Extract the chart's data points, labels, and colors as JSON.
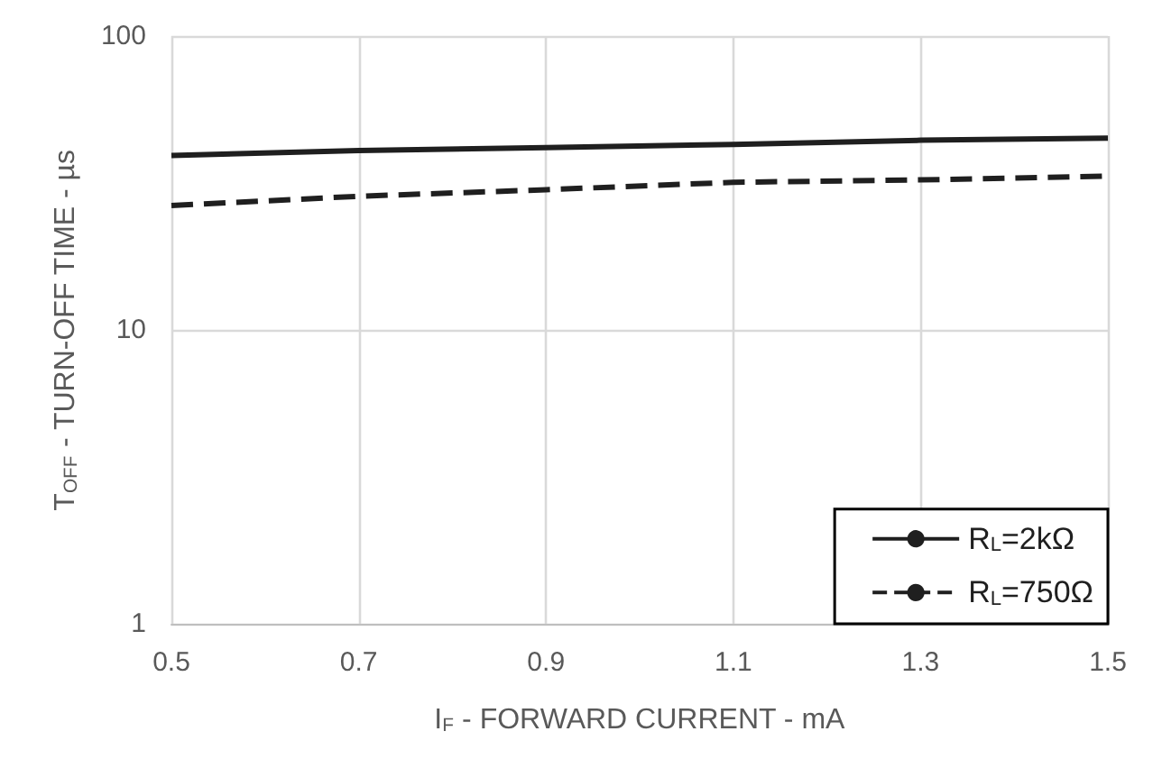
{
  "chart_data": {
    "type": "line",
    "xlabel": "I$_{F}$ - FORWARD CURRENT - mA",
    "ylabel": "T$_{OFF}$ - TURN-OFF TIME - µs",
    "x": [
      0.5,
      0.7,
      0.9,
      1.1,
      1.3,
      1.5
    ],
    "series": [
      {
        "name": "R$_{L}$=2kΩ",
        "color": "#1f1f1f",
        "line_style": "solid",
        "values": [
          39.2,
          40.8,
          41.7,
          42.8,
          44.2,
          44.9
        ]
      },
      {
        "name": "R$_{L}$=750Ω",
        "color": "#1f1f1f",
        "line_style": "dashed",
        "values": [
          26.5,
          28.5,
          30.0,
          31.8,
          32.4,
          33.4
        ]
      }
    ],
    "xlim": [
      0.5,
      1.5
    ],
    "xticks": [
      0.5,
      0.7,
      0.9,
      1.1,
      1.3,
      1.5
    ],
    "ylim": [
      1,
      100
    ],
    "yticks": [
      1,
      10,
      100
    ],
    "log": "y",
    "grid": true,
    "legend": "bottom right",
    "marker": "none"
  }
}
